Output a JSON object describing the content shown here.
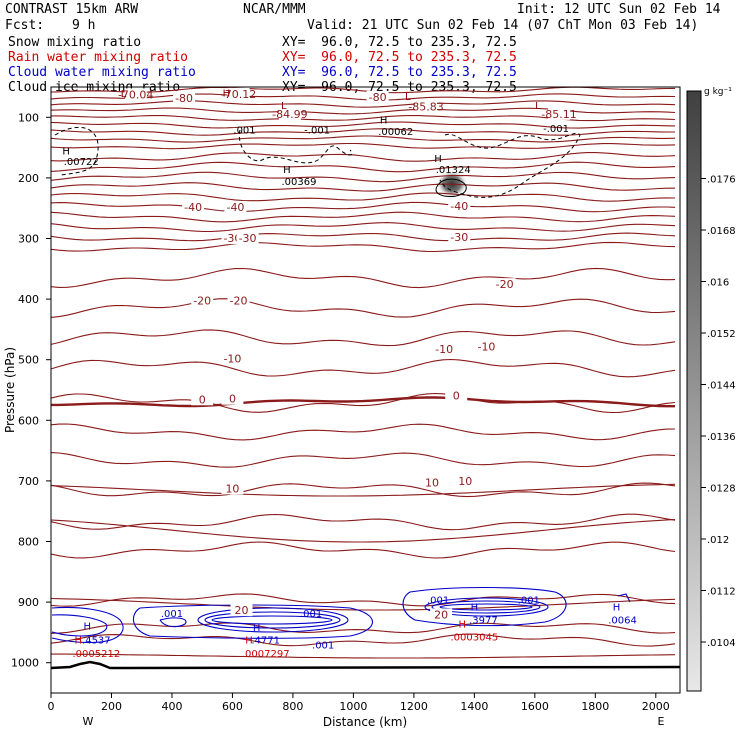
{
  "header": {
    "model": "CONTRAST 15km ARW",
    "org": "NCAR/MMM",
    "init": "Init: 12 UTC Sun 02 Feb 14",
    "fcst_label": "Fcst:",
    "fcst_value": "9 h",
    "valid": "Valid: 21 UTC Sun 02 Feb 14 (07 ChT Mon 03 Feb 14)",
    "fields": [
      {
        "name": "Snow mixing ratio",
        "xy": "XY=  96.0, 72.5 to 235.3, 72.5",
        "color": "#000000"
      },
      {
        "name": "Rain water mixing ratio",
        "xy": "XY=  96.0, 72.5 to 235.3, 72.5",
        "color": "#d00000"
      },
      {
        "name": "Cloud water mixing ratio",
        "xy": "XY=  96.0, 72.5 to 235.3, 72.5",
        "color": "#0000c8"
      },
      {
        "name": "Cloud ice mixing ratio",
        "xy": "XY=  96.0, 72.5 to 235.3, 72.5",
        "color": "#000000"
      }
    ]
  },
  "chart_data": {
    "type": "contour-cross-section",
    "xlabel": "Distance (km)",
    "ylabel": "Pressure (hPa)",
    "xlim": [
      0,
      2080
    ],
    "ylim": [
      1050,
      50
    ],
    "xticks": [
      0,
      200,
      400,
      600,
      800,
      1000,
      1200,
      1400,
      1600,
      1800,
      2000
    ],
    "yticks": [
      100,
      200,
      300,
      400,
      500,
      600,
      700,
      800,
      900,
      1000
    ],
    "endpoint_labels": {
      "left": "W",
      "right": "E"
    },
    "colorbar": {
      "unit": "g kg⁻¹",
      "ticks": [
        ".0104",
        ".0112",
        ".012",
        ".0128",
        ".0136",
        ".0144",
        ".0152",
        ".016",
        ".0168",
        ".0176"
      ]
    },
    "temperature_labels": [
      {
        "text": "-70.04",
        "x": 280,
        "p": 64
      },
      {
        "text": "-70.12",
        "x": 620,
        "p": 63
      },
      {
        "text": "-80",
        "x": 440,
        "p": 70
      },
      {
        "text": "-80",
        "x": 1080,
        "p": 68
      },
      {
        "text": "-84.99",
        "x": 790,
        "p": 96
      },
      {
        "text": "-85.83",
        "x": 1240,
        "p": 84
      },
      {
        "text": "-85.11",
        "x": 1680,
        "p": 96
      },
      {
        "text": "-40",
        "x": 470,
        "p": 250
      },
      {
        "text": "-40",
        "x": 610,
        "p": 250
      },
      {
        "text": "-40",
        "x": 1350,
        "p": 248
      },
      {
        "text": "-30",
        "x": 600,
        "p": 301
      },
      {
        "text": "-30",
        "x": 650,
        "p": 301
      },
      {
        "text": "-30",
        "x": 1350,
        "p": 299
      },
      {
        "text": "-20",
        "x": 500,
        "p": 404
      },
      {
        "text": "-20",
        "x": 620,
        "p": 404
      },
      {
        "text": "-20",
        "x": 1500,
        "p": 377
      },
      {
        "text": "-10",
        "x": 600,
        "p": 500
      },
      {
        "text": "-10",
        "x": 1300,
        "p": 484
      },
      {
        "text": "-10",
        "x": 1440,
        "p": 480
      },
      {
        "text": "0",
        "x": 500,
        "p": 567
      },
      {
        "text": "0",
        "x": 600,
        "p": 566
      },
      {
        "text": "0",
        "x": 1340,
        "p": 561
      },
      {
        "text": "10",
        "x": 600,
        "p": 714
      },
      {
        "text": "10",
        "x": 1260,
        "p": 704
      },
      {
        "text": "10",
        "x": 1370,
        "p": 702
      },
      {
        "text": "20",
        "x": 630,
        "p": 915
      },
      {
        "text": "20",
        "x": 1290,
        "p": 922
      }
    ],
    "extrema_labels": [
      {
        "text": "L",
        "x": 240,
        "p": 60,
        "color": "#8b0000"
      },
      {
        "text": "H",
        "x": 580,
        "p": 59,
        "color": "#8b0000"
      },
      {
        "text": "L",
        "x": 770,
        "p": 80,
        "color": "#8b0000"
      },
      {
        "text": "L",
        "x": 1180,
        "p": 65,
        "color": "#8b0000"
      },
      {
        "text": "L",
        "x": 1610,
        "p": 80,
        "color": "#8b0000"
      },
      {
        "text": ".001",
        "x": 640,
        "p": 120,
        "color": "#000000"
      },
      {
        "text": "-.001",
        "x": 880,
        "p": 120,
        "color": "#000000"
      },
      {
        "text": "H",
        "x": 1100,
        "p": 104,
        "color": "#000000"
      },
      {
        "text": ".00062",
        "x": 1140,
        "p": 123,
        "color": "#000000"
      },
      {
        "text": "-.001",
        "x": 1670,
        "p": 118,
        "color": "#000000"
      },
      {
        "text": "H",
        "x": 50,
        "p": 155,
        "color": "#000000"
      },
      {
        "text": ".00722",
        "x": 100,
        "p": 172,
        "color": "#000000"
      },
      {
        "text": "H",
        "x": 780,
        "p": 185,
        "color": "#000000"
      },
      {
        "text": ".00369",
        "x": 820,
        "p": 205,
        "color": "#000000"
      },
      {
        "text": "H",
        "x": 1280,
        "p": 167,
        "color": "#000000"
      },
      {
        "text": ".01324",
        "x": 1330,
        "p": 185,
        "color": "#000000"
      },
      {
        "text": "H",
        "x": 120,
        "p": 939,
        "color": "#0000c8"
      },
      {
        "text": ".4537",
        "x": 150,
        "p": 962,
        "color": "#0000c8"
      },
      {
        "text": "H",
        "x": 90,
        "p": 962,
        "color": "#d00000"
      },
      {
        "text": ".0005212",
        "x": 150,
        "p": 984,
        "color": "#d00000"
      },
      {
        "text": ".001",
        "x": 400,
        "p": 918,
        "color": "#0000c8"
      },
      {
        "text": "H",
        "x": 680,
        "p": 941,
        "color": "#0000c8"
      },
      {
        "text": "H",
        "x": 655,
        "p": 962,
        "color": "#d00000"
      },
      {
        "text": ".4771",
        "x": 710,
        "p": 962,
        "color": "#0000c8"
      },
      {
        "text": ".0007297",
        "x": 710,
        "p": 984,
        "color": "#d00000"
      },
      {
        "text": ".001",
        "x": 860,
        "p": 918,
        "color": "#0000c8"
      },
      {
        "text": ".001",
        "x": 900,
        "p": 970,
        "color": "#0000c8"
      },
      {
        "text": ".001",
        "x": 1280,
        "p": 896,
        "color": "#0000c8"
      },
      {
        "text": ".001",
        "x": 1580,
        "p": 896,
        "color": "#0000c8"
      },
      {
        "text": "H",
        "x": 1400,
        "p": 907,
        "color": "#0000c8"
      },
      {
        "text": ".3977",
        "x": 1430,
        "p": 929,
        "color": "#0000c8"
      },
      {
        "text": "H",
        "x": 1360,
        "p": 935,
        "color": "#d00000"
      },
      {
        "text": ".0003045",
        "x": 1400,
        "p": 957,
        "color": "#d00000"
      },
      {
        "text": "H",
        "x": 1870,
        "p": 907,
        "color": "#0000c8"
      },
      {
        "text": ".0064",
        "x": 1890,
        "p": 929,
        "color": "#0000c8"
      }
    ]
  }
}
